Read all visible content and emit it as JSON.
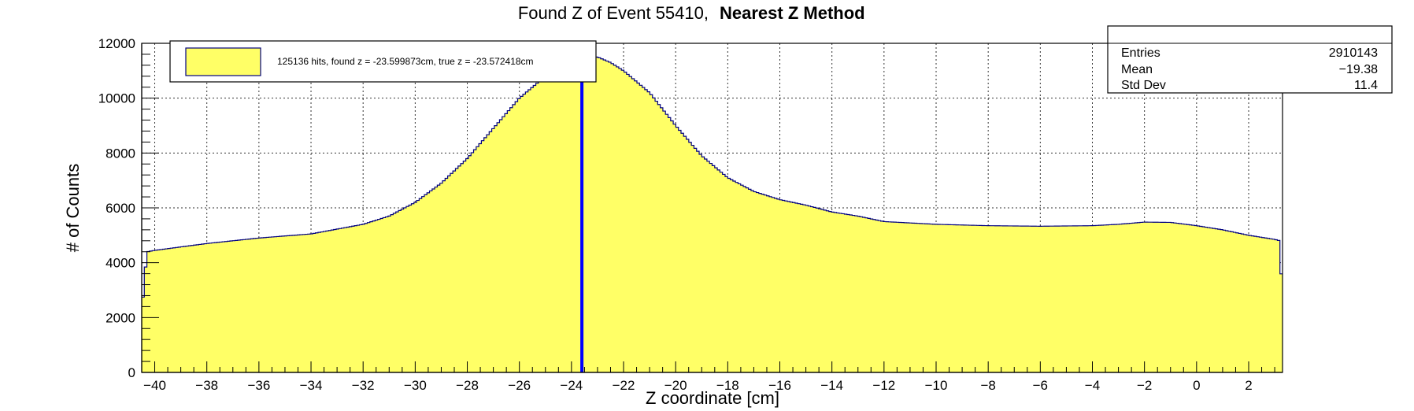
{
  "chart_data": {
    "type": "histogram",
    "title": {
      "prefix": "Found Z of Event 55410,",
      "method": "Nearest Z Method"
    },
    "xlabel": "Z coordinate [cm]",
    "ylabel": "# of Counts",
    "xlim": [
      -40.5,
      3.3
    ],
    "ylim": [
      0,
      12000
    ],
    "grid": true,
    "x_ticks": [
      -40,
      -38,
      -36,
      -34,
      -32,
      -30,
      -28,
      -26,
      -24,
      -22,
      -20,
      -18,
      -16,
      -14,
      -12,
      -10,
      -8,
      -6,
      -4,
      -2,
      0,
      2
    ],
    "x_tick_labels": [
      "−40",
      "−38",
      "−36",
      "−34",
      "−32",
      "−30",
      "−28",
      "−26",
      "−24",
      "−22",
      "−20",
      "−18",
      "−16",
      "−14",
      "−12",
      "−10",
      "−8",
      "−6",
      "−4",
      "−2",
      "0",
      "2"
    ],
    "y_ticks": [
      0,
      2000,
      4000,
      6000,
      8000,
      10000,
      12000
    ],
    "y_tick_labels": [
      "0",
      "2000",
      "4000",
      "6000",
      "8000",
      "10000",
      "12000"
    ],
    "fill_color": "#ffff66",
    "line_color": "#000080",
    "marker_line": {
      "x": -23.599873,
      "color": "#0000ff"
    },
    "profile_x": [
      -40.5,
      -40.3,
      -40.0,
      -38.0,
      -36.0,
      -34.0,
      -32.0,
      -31.0,
      -30.0,
      -29.0,
      -28.0,
      -27.0,
      -26.0,
      -25.0,
      -24.0,
      -23.5,
      -23.0,
      -22.5,
      -22.0,
      -21.0,
      -20.0,
      -19.0,
      -18.0,
      -17.0,
      -16.0,
      -15.0,
      -14.0,
      -13.0,
      -12.0,
      -10.0,
      -8.0,
      -6.0,
      -4.0,
      -3.0,
      -2.0,
      -1.0,
      0.0,
      1.0,
      2.0,
      3.0,
      3.2,
      3.3
    ],
    "profile_y": [
      2200,
      4400,
      4450,
      4700,
      4900,
      5050,
      5400,
      5700,
      6200,
      6900,
      7800,
      8900,
      10000,
      10800,
      11200,
      11450,
      11500,
      11300,
      11000,
      10200,
      9000,
      7900,
      7100,
      6600,
      6300,
      6100,
      5850,
      5700,
      5500,
      5400,
      5350,
      5330,
      5350,
      5400,
      5480,
      5470,
      5350,
      5200,
      5000,
      4850,
      4800,
      2400
    ],
    "stats": {
      "header": "",
      "rows": [
        {
          "label": "Entries",
          "value": "2910143"
        },
        {
          "label": "Mean",
          "value": "−19.38"
        },
        {
          "label": "Std Dev",
          "value": "11.4"
        }
      ]
    },
    "legend": {
      "label": "125136 hits, found z = -23.599873cm, true z = -23.572418cm",
      "swatch_color": "#ffff66"
    }
  }
}
